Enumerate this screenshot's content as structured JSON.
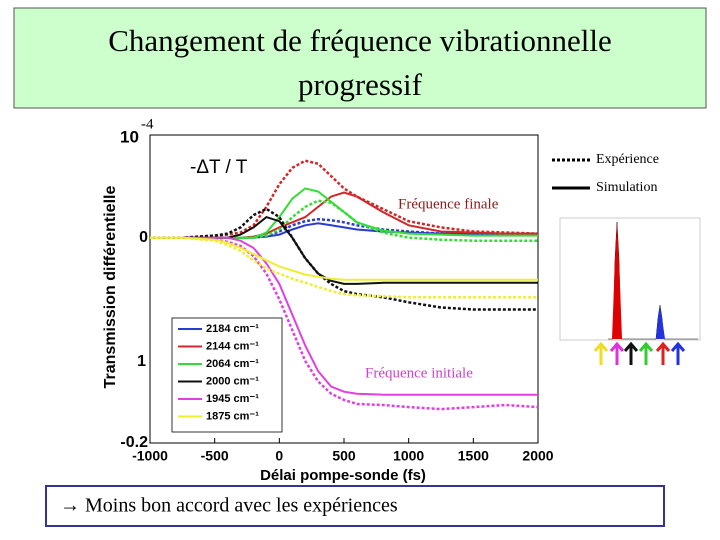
{
  "chart_data": {
    "type": "line",
    "title": [
      "Changement de fréquence vibrationnelle",
      "progressif"
    ],
    "y_scale_base": "10",
    "y_scale_exponent": "-4",
    "y_extra_label": "1",
    "ylabel": "Transmission différentielle",
    "xlabel": "Délai pompe-sonde (fs)",
    "annotations": [
      "-ΔT / T",
      "Fréquence finale",
      "Fréquence initiale"
    ],
    "style_legend": [
      "Expérience",
      "Simulation"
    ],
    "note": "→ Moins bon accord avec les expériences",
    "xlim": [
      -1000,
      2000
    ],
    "xticks": [
      -1000,
      -500,
      0,
      500,
      1000,
      1500,
      2000
    ],
    "ylim": [
      -0.2,
      0.1
    ],
    "yticks": [
      0,
      -0.2
    ],
    "x": [
      -1000,
      -750,
      -500,
      -400,
      -300,
      -200,
      -100,
      0,
      100,
      200,
      300,
      400,
      500,
      600,
      800,
      1000,
      1250,
      1500,
      1750,
      2000
    ],
    "series": [
      {
        "name": "2184 cm⁻¹",
        "color": "#2a3bd0",
        "simulation": [
          0,
          0,
          0,
          0,
          0,
          0,
          0.001,
          0.003,
          0.008,
          0.012,
          0.014,
          0.012,
          0.01,
          0.008,
          0.006,
          0.005,
          0.004,
          0.004,
          0.004,
          0.004
        ],
        "experiment": [
          0,
          0,
          0,
          0,
          0,
          0,
          0.002,
          0.006,
          0.012,
          0.016,
          0.018,
          0.017,
          0.015,
          0.012,
          0.008,
          0.006,
          0.004,
          0.004,
          0.003,
          0.003
        ]
      },
      {
        "name": "2144 cm⁻¹",
        "color": "#d02828",
        "simulation": [
          0,
          0,
          0,
          0,
          0,
          0.001,
          0.004,
          0.01,
          0.015,
          0.02,
          0.03,
          0.04,
          0.044,
          0.04,
          0.025,
          0.012,
          0.006,
          0.005,
          0.004,
          0.004
        ],
        "experiment": [
          0,
          0,
          0.002,
          0.003,
          0.005,
          0.012,
          0.03,
          0.052,
          0.068,
          0.075,
          0.072,
          0.06,
          0.048,
          0.04,
          0.028,
          0.016,
          0.01,
          0.006,
          0.005,
          0.004
        ]
      },
      {
        "name": "2064 cm⁻¹",
        "color": "#33dd33",
        "simulation": [
          0,
          0,
          0,
          0,
          0,
          0,
          0.005,
          0.02,
          0.038,
          0.048,
          0.045,
          0.035,
          0.025,
          0.015,
          0.007,
          0.004,
          0.003,
          0.002,
          0.002,
          0.002
        ],
        "experiment": [
          0,
          0,
          0,
          0,
          0,
          0,
          0.002,
          0.008,
          0.02,
          0.03,
          0.036,
          0.034,
          0.025,
          0.015,
          0.005,
          0,
          -0.002,
          -0.003,
          -0.003,
          -0.003
        ]
      },
      {
        "name": "2000 cm⁻¹",
        "color": "#111111",
        "simulation": [
          0,
          0,
          0,
          0,
          0.003,
          0.01,
          0.02,
          0.016,
          0,
          -0.02,
          -0.035,
          -0.042,
          -0.045,
          -0.045,
          -0.044,
          -0.044,
          -0.044,
          -0.044,
          -0.044,
          -0.044
        ],
        "experiment": [
          0,
          0,
          0.002,
          0.004,
          0.01,
          0.022,
          0.028,
          0.02,
          0,
          -0.02,
          -0.035,
          -0.045,
          -0.052,
          -0.055,
          -0.058,
          -0.063,
          -0.068,
          -0.07,
          -0.07,
          -0.07
        ]
      },
      {
        "name": "1945 cm⁻¹",
        "color": "#e040e0",
        "simulation": [
          0,
          0,
          0,
          0,
          -0.003,
          -0.01,
          -0.025,
          -0.045,
          -0.075,
          -0.105,
          -0.13,
          -0.145,
          -0.15,
          -0.152,
          -0.153,
          -0.153,
          -0.153,
          -0.153,
          -0.153,
          -0.153
        ],
        "experiment": [
          0,
          0,
          -0.002,
          -0.004,
          -0.008,
          -0.018,
          -0.035,
          -0.06,
          -0.09,
          -0.12,
          -0.14,
          -0.152,
          -0.158,
          -0.162,
          -0.163,
          -0.165,
          -0.167,
          -0.165,
          -0.163,
          -0.165
        ]
      },
      {
        "name": "1875 cm⁻¹",
        "color": "#eeee33",
        "simulation": [
          0,
          0,
          -0.002,
          -0.005,
          -0.01,
          -0.016,
          -0.022,
          -0.028,
          -0.032,
          -0.036,
          -0.038,
          -0.04,
          -0.041,
          -0.041,
          -0.041,
          -0.041,
          -0.041,
          -0.041,
          -0.041,
          -0.041
        ],
        "experiment": [
          0,
          0,
          -0.003,
          -0.007,
          -0.013,
          -0.022,
          -0.03,
          -0.035,
          -0.04,
          -0.044,
          -0.048,
          -0.052,
          -0.055,
          -0.056,
          -0.057,
          -0.058,
          -0.058,
          -0.058,
          -0.058,
          -0.058
        ]
      }
    ]
  }
}
